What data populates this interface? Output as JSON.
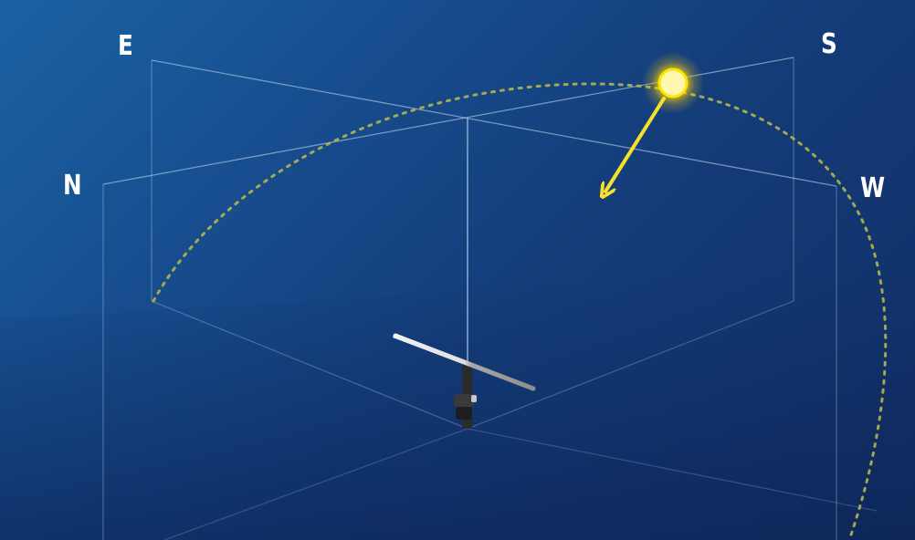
{
  "compass": {
    "north": "N",
    "east": "E",
    "south": "S",
    "west": "W"
  },
  "colors": {
    "background_light": "#1b63a3",
    "background_dark": "#112d63",
    "sun": "#fff6b0",
    "sun_glow": "#ffe400",
    "sun_ray_arrow": "#f6e02a",
    "sun_path": "#b6b44a",
    "box_lines": "#c9d9f0",
    "panel_light": "#e8e8e8",
    "panel_dark": "#9a9a9a",
    "mount": "#2b2b2b"
  },
  "icons": {
    "sun": "sun-icon",
    "ray": "arrow-down-left-icon",
    "tracker": "solar-tracker-icon"
  }
}
